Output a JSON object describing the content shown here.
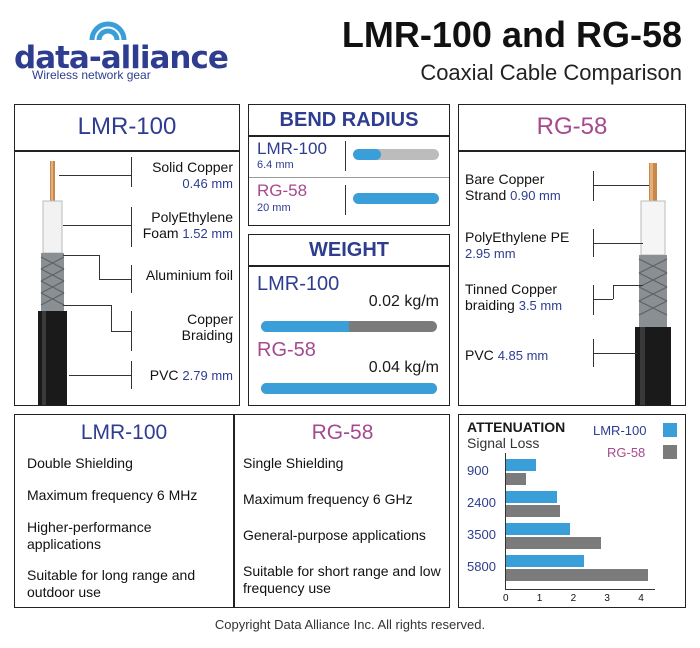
{
  "header": {
    "logo_name": "data-alliance",
    "logo_tagline": "Wireless network gear",
    "title": "LMR-100 and RG-58",
    "subtitle": "Coaxial Cable Comparison"
  },
  "lmr_panel": {
    "title": "LMR-100",
    "layers": [
      {
        "name": "Solid Copper",
        "value": "0.46 mm"
      },
      {
        "name": "PolyEthylene",
        "name2": "Foam",
        "value": "1.52 mm"
      },
      {
        "name": "Aluminium foil",
        "value": ""
      },
      {
        "name": "Copper",
        "name2": "Braiding",
        "value": ""
      },
      {
        "name": "PVC",
        "value": "2.79 mm"
      }
    ]
  },
  "bend_radius": {
    "title": "BEND RADIUS",
    "items": [
      {
        "name": "LMR-100",
        "value": "6.4 mm",
        "fill": 0.32
      },
      {
        "name": "RG-58",
        "value": "20 mm",
        "fill": 1.0
      }
    ]
  },
  "weight": {
    "title": "WEIGHT",
    "items": [
      {
        "name": "LMR-100",
        "value": "0.02 kg/m",
        "fill": 0.5
      },
      {
        "name": "RG-58",
        "value": "0.04 kg/m",
        "fill": 1.0
      }
    ]
  },
  "rg_panel": {
    "title": "RG-58",
    "layers": [
      {
        "name": "Bare Copper",
        "name2": "Strand",
        "value": "0.90 mm"
      },
      {
        "name": "PolyEthylene PE",
        "value": "2.95 mm"
      },
      {
        "name": "Tinned Copper",
        "name2": "braiding",
        "value": "3.5 mm"
      },
      {
        "name": "PVC",
        "value": "4.85 mm"
      }
    ]
  },
  "features": {
    "lmr_title": "LMR-100",
    "rg_title": "RG-58",
    "lmr": [
      "Double Shielding",
      "Maximum frequency 6 MHz",
      "Higher-performance applications",
      "Suitable for long range and outdoor use"
    ],
    "rg": [
      "Single Shielding",
      "Maximum frequency 6 GHz",
      "General-purpose applications",
      "Suitable for short range and low frequency use"
    ]
  },
  "attenuation": {
    "title": "ATTENUATION",
    "subtitle": "Signal Loss",
    "legend_lmr": "LMR-100",
    "legend_rg": "RG-58",
    "colors": {
      "lmr": "#3a9fd9",
      "rg": "#7b7b7b"
    }
  },
  "chart_data": {
    "type": "bar",
    "orientation": "horizontal",
    "title": "ATTENUATION",
    "subtitle": "Signal Loss",
    "categories": [
      "900",
      "2400",
      "3500",
      "5800"
    ],
    "series": [
      {
        "name": "LMR-100",
        "values": [
          0.9,
          1.5,
          1.9,
          2.3
        ]
      },
      {
        "name": "RG-58",
        "values": [
          0.6,
          1.6,
          2.8,
          4.2
        ]
      }
    ],
    "xlim": [
      0,
      4.2
    ],
    "xticks": [
      "0",
      "1",
      "2",
      "3",
      "4"
    ],
    "legend": "top-right"
  },
  "footer": {
    "copyright": "Copyright Data Alliance Inc.  All rights reserved."
  }
}
